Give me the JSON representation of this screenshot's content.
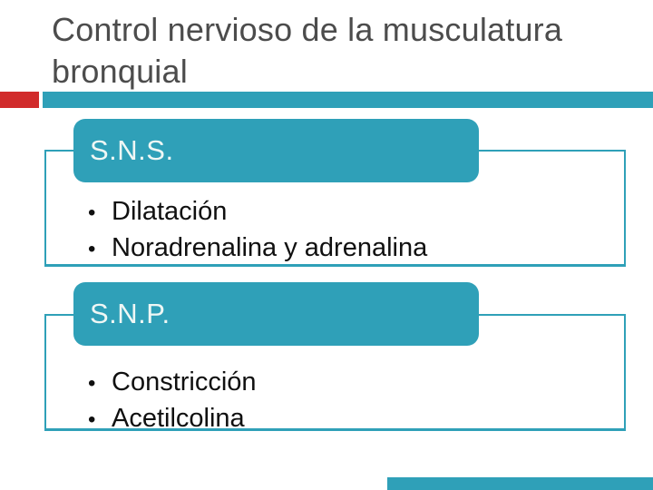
{
  "slide": {
    "title": "Control nervioso de la musculatura bronquial",
    "bullet_char": "•",
    "blocks": [
      {
        "header": "S.N.S.",
        "bullets": [
          "Dilatación",
          "Noradrenalina y adrenalina"
        ]
      },
      {
        "header": "S.N.P.",
        "bullets": [
          "Constricción",
          "Acetilcolina"
        ]
      }
    ],
    "colors": {
      "accent_teal": "#2FA0B8",
      "accent_red": "#D12B2B",
      "title_text": "#4C4C4C",
      "body_text": "#101010",
      "header_text": "#EFF7F5",
      "background": "#FFFFFF"
    }
  }
}
